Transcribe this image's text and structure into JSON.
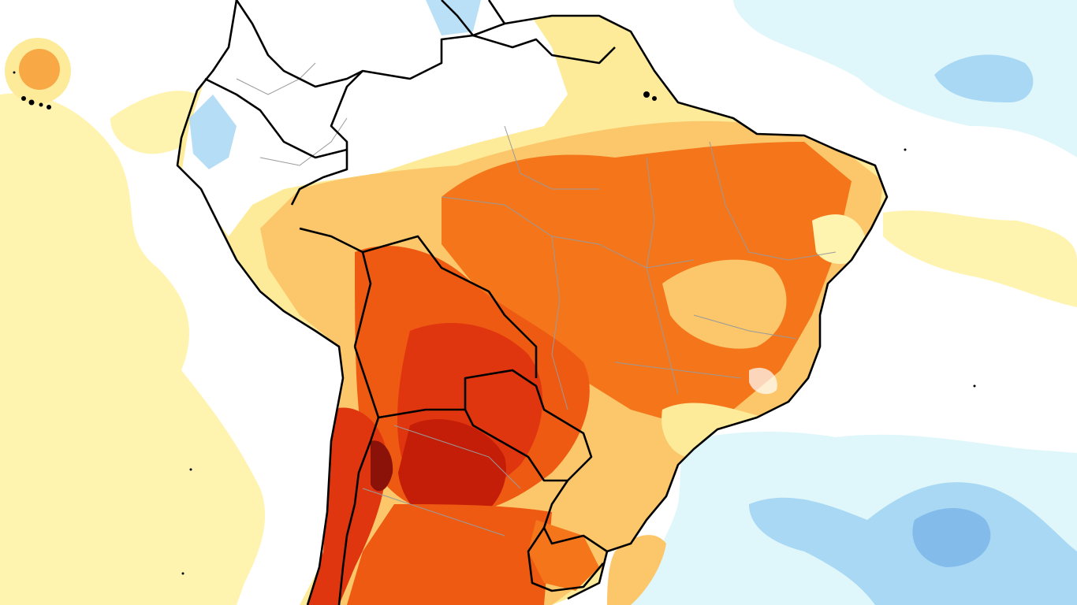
{
  "map": {
    "kind": "temperature-anomaly",
    "region": "South America",
    "colors": {
      "ocean_neutral": "#ffffff",
      "cool_light": "#dff7fb",
      "cool_medium": "#a8d8f4",
      "cool_strong": "#7db6e8",
      "warm_light": "#fff3b0",
      "warm_yellow": "#fdeb9a",
      "warm_orange_light": "#fbc76a",
      "warm_orange": "#f8a845",
      "hot_orange": "#f5751a",
      "hot_red_orange": "#ee5a12",
      "hot_red": "#e0360f",
      "extreme_red": "#c41e08",
      "extreme_dark": "#8a1208",
      "national_border": "#000000",
      "state_border": "#9a9a9a"
    },
    "layers": [
      "ocean-field",
      "land-anomaly-field",
      "state-borders",
      "national-borders",
      "islands"
    ]
  }
}
